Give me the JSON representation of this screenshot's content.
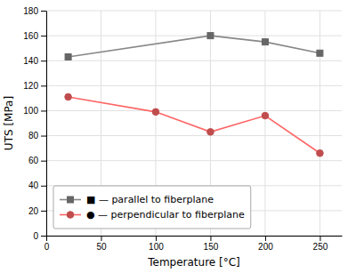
{
  "chart_data": {
    "type": "line",
    "x_label": "Temperature [°C]",
    "y_label": "UTS [MPa]",
    "series": [
      {
        "name": "■ — parallel to fiberplane",
        "color": "#888888",
        "marker": "square",
        "line_style": "solid",
        "x": [
          20,
          150,
          200,
          250
        ],
        "values": [
          143,
          160,
          155,
          146
        ]
      },
      {
        "name": "● — perpendicular to fiberplane",
        "color": "#ff6666",
        "marker": "circle",
        "line_style": "solid",
        "x": [
          20,
          100,
          150,
          200,
          250
        ],
        "values": [
          111,
          99,
          83,
          96,
          66
        ]
      }
    ],
    "xlim": [
      0,
      270
    ],
    "ylim": [
      0,
      180
    ],
    "xticks": [
      0,
      50,
      100,
      150,
      200,
      250
    ],
    "yticks": [
      0,
      20,
      40,
      60,
      80,
      100,
      120,
      140,
      160,
      180
    ],
    "grid": true,
    "legend": "lower left"
  }
}
